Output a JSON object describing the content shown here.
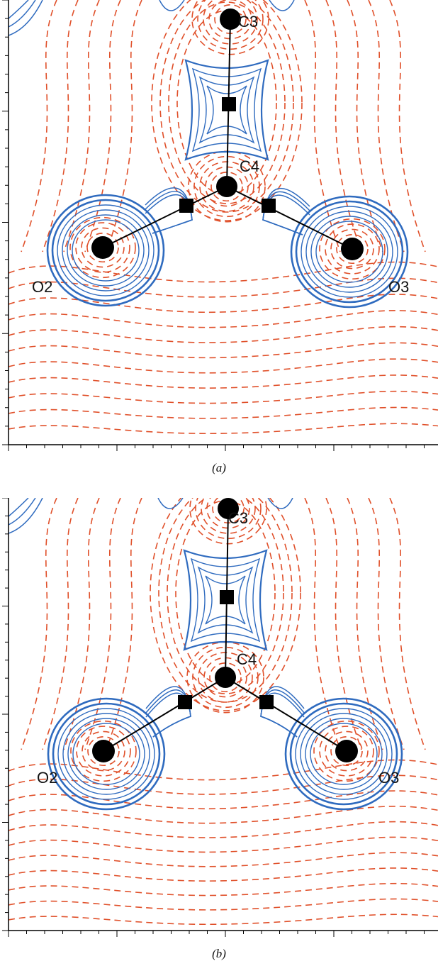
{
  "panels": [
    {
      "id": "a",
      "caption": "(a)",
      "atoms": [
        {
          "label": "C3"
        },
        {
          "label": "C4"
        },
        {
          "label": "O2"
        },
        {
          "label": "O3"
        }
      ]
    },
    {
      "id": "b",
      "caption": "(b)",
      "atoms": [
        {
          "label": "C3"
        },
        {
          "label": "C4"
        },
        {
          "label": "O2"
        },
        {
          "label": "O3"
        }
      ]
    }
  ],
  "figure_fragment": "",
  "colors": {
    "positive_contour": "#2f6bbf",
    "negative_contour": "#e0502a",
    "atoms": "#000000",
    "frame": "#000000"
  }
}
